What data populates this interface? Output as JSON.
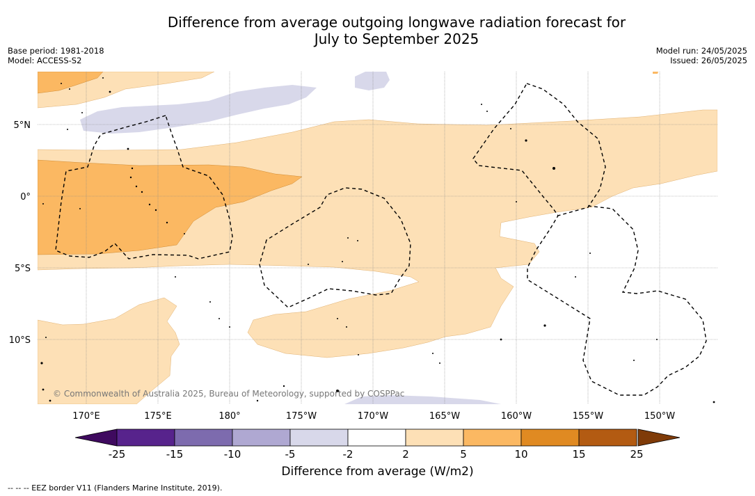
{
  "header": {
    "title_line1": "Difference from average outgoing longwave radiation forecast for",
    "title_line2": "July to September 2025",
    "base_period": "Base period: 1981-2018",
    "model": "Model: ACCESS-S2",
    "model_run": "Model run: 24/05/2025",
    "issued": "Issued: 26/05/2025"
  },
  "map": {
    "lat_labels": [
      "5°N",
      "0°",
      "5°S",
      "10°S"
    ],
    "lon_labels": [
      "170°E",
      "175°E",
      "180°",
      "175°W",
      "170°W",
      "165°W",
      "160°W",
      "155°W",
      "150°W"
    ],
    "copyright": "© Commonwealth of Australia 2025, Bureau of Meteorology, supported by COSPPac",
    "colors": {
      "neutral": "#ffffff",
      "light_orange": "#fde0b6",
      "mid_orange": "#fbb862",
      "light_lavender": "#d8d8ea",
      "eez_border": "#000000"
    }
  },
  "colorbar": {
    "tick_labels": [
      "-25",
      "-15",
      "-10",
      "-5",
      "-2",
      "2",
      "5",
      "10",
      "15",
      "25"
    ],
    "colors": [
      "#57238c",
      "#7d6bae",
      "#afa8d2",
      "#d8d8ea",
      "#ffffff",
      "#fde0b6",
      "#fbb862",
      "#e08a22",
      "#b35b12"
    ],
    "under_color": "#3f0a5f",
    "over_color": "#7f3b08",
    "label": "Difference from average (W/m2)"
  },
  "footnote": "--  --  -- EEZ border V11 (Flanders Marine Institute, 2019)."
}
